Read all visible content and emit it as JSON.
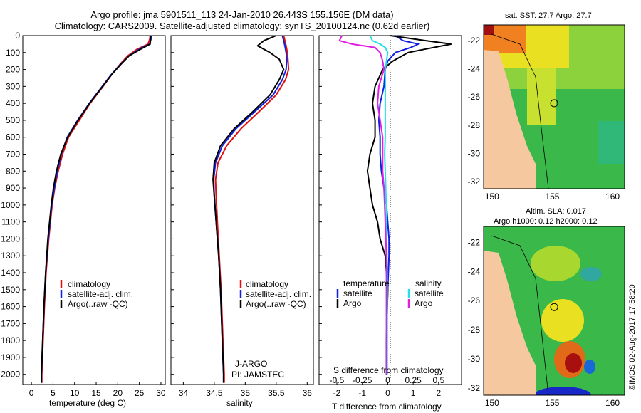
{
  "figure": {
    "title_line1": "Argo profile: jma 5901511_113 24-Jan-2010 26.443S 155.156E (DM data)",
    "title_line2": "Climatology: CARS2009. Satellite-adjusted climatology: synTS_20100124.nc (0.62d earlier)",
    "credit": "©IMOS 02-Aug-2017 17:58:20",
    "pi_line1": "J-ARGO",
    "pi_line2": "PI: JAMSTEC"
  },
  "colors": {
    "climatology": "#e01010",
    "satellite": "#1020e0",
    "argo": "#000000",
    "salinity_satellite": "#20e0e8",
    "salinity_argo": "#e020e0",
    "land": "#f5c8a0"
  },
  "chart_data": [
    {
      "type": "line",
      "panel": "temperature",
      "xlabel": "temperature (deg C)",
      "ylabel": "",
      "xlim": [
        -2,
        31
      ],
      "ylim": [
        2060,
        0
      ],
      "xticks": [
        "0",
        "5",
        "10",
        "15",
        "20",
        "25",
        "30"
      ],
      "yticks": [
        "0",
        "100",
        "200",
        "300",
        "400",
        "500",
        "600",
        "700",
        "800",
        "900",
        "1000",
        "1100",
        "1200",
        "1300",
        "1400",
        "1500",
        "1600",
        "1700",
        "1800",
        "1900",
        "2000"
      ],
      "legend": [
        "climatology",
        "satellite-adj. clim.",
        "Argo(..raw -QC)"
      ],
      "depth": [
        0,
        20,
        50,
        80,
        120,
        170,
        230,
        300,
        400,
        500,
        600,
        700,
        800,
        900,
        1000,
        1200,
        1400,
        1600,
        1800,
        2000,
        2050
      ],
      "series": [
        {
          "name": "climatology",
          "values": [
            27.5,
            27.4,
            27.0,
            24.5,
            22.3,
            20.5,
            18.6,
            16.6,
            13.6,
            11.1,
            8.6,
            7.2,
            6.2,
            5.4,
            4.8,
            4.0,
            3.4,
            3.0,
            2.7,
            2.4,
            2.4
          ]
        },
        {
          "name": "satellite-adj. clim.",
          "values": [
            27.8,
            27.7,
            27.4,
            25.0,
            22.6,
            20.6,
            18.5,
            16.4,
            13.4,
            10.7,
            8.3,
            6.9,
            6.0,
            5.3,
            4.7,
            3.9,
            3.3,
            2.9,
            2.6,
            2.3,
            2.3
          ]
        },
        {
          "name": "Argo(..raw -QC)",
          "values": [
            27.6,
            27.6,
            27.5,
            25.3,
            22.6,
            20.7,
            18.6,
            16.5,
            13.5,
            10.8,
            8.4,
            6.8,
            5.8,
            5.1,
            4.6,
            3.8,
            3.3,
            2.9,
            2.6,
            2.3,
            2.3
          ]
        }
      ]
    },
    {
      "type": "line",
      "panel": "salinity",
      "xlabel": "salinity",
      "ylabel": "",
      "xlim": [
        33.8,
        36.1
      ],
      "ylim": [
        2060,
        0
      ],
      "xticks": [
        "34",
        "34.5",
        "35",
        "35.5",
        "36"
      ],
      "legend": [
        "climatology",
        "satellite-adj. clim.",
        "Argo(..raw -QC)"
      ],
      "depth": [
        0,
        30,
        60,
        100,
        140,
        200,
        260,
        350,
        450,
        550,
        650,
        750,
        850,
        950,
        1100,
        1300,
        1500,
        1700,
        1900,
        2000,
        2050
      ],
      "series": [
        {
          "name": "climatology",
          "values": [
            35.62,
            35.64,
            35.66,
            35.68,
            35.69,
            35.7,
            35.65,
            35.5,
            35.22,
            34.93,
            34.7,
            34.56,
            34.52,
            34.53,
            34.55,
            34.58,
            34.61,
            34.63,
            34.65,
            34.66,
            34.66
          ]
        },
        {
          "name": "satellite-adj. clim.",
          "values": [
            35.6,
            35.62,
            35.64,
            35.66,
            35.67,
            35.66,
            35.6,
            35.45,
            35.15,
            34.85,
            34.63,
            34.52,
            34.49,
            34.5,
            34.53,
            34.57,
            34.6,
            34.62,
            34.64,
            34.65,
            34.65
          ]
        },
        {
          "name": "Argo(..raw -QC)",
          "values": [
            35.5,
            35.3,
            35.2,
            35.4,
            35.55,
            35.62,
            35.55,
            35.4,
            35.12,
            34.82,
            34.6,
            34.5,
            34.48,
            34.5,
            34.53,
            34.57,
            34.6,
            34.62,
            34.64,
            34.65,
            34.65
          ]
        }
      ]
    },
    {
      "type": "line",
      "panel": "difference",
      "xlabel": "T difference from climatology",
      "xlabel_top": "S difference from climatology",
      "ylabel": "",
      "xlim": [
        -2.7,
        2.9
      ],
      "ylim": [
        2060,
        0
      ],
      "xticks": [
        "-2",
        "-1",
        "0",
        "1",
        "2"
      ],
      "sticks": [
        "-0.5",
        "-0.25",
        "0",
        "0.25",
        "0.5"
      ],
      "s_tick_positions": [
        -2,
        -1,
        0,
        1,
        2
      ],
      "legend_title_t": "temperature",
      "legend_title_s": "salinity",
      "legend_t": [
        "satellite",
        "Argo"
      ],
      "legend_s": [
        "satellite",
        "Argo"
      ],
      "depth": [
        0,
        30,
        50,
        70,
        100,
        150,
        200,
        300,
        400,
        500,
        600,
        700,
        800,
        900,
        1000,
        1100,
        1200,
        1300,
        1500,
        1800,
        2000
      ],
      "series": [
        {
          "name": "temperature satellite",
          "values": [
            0.3,
            0.6,
            1.2,
            0.9,
            0.3,
            0.0,
            -0.1,
            -0.15,
            -0.3,
            -0.35,
            -0.3,
            -0.3,
            -0.25,
            -0.15,
            -0.05,
            0.0,
            0.05,
            0.05,
            0.0,
            -0.05,
            -0.05
          ]
        },
        {
          "name": "temperature Argo",
          "values": [
            0.1,
            1.5,
            2.5,
            1.8,
            0.8,
            0.2,
            -0.2,
            -0.5,
            -0.6,
            -0.5,
            -0.5,
            -0.7,
            -0.8,
            -0.7,
            -0.6,
            -0.4,
            -0.3,
            -0.1,
            0.0,
            -0.05,
            -0.05
          ]
        },
        {
          "name": "salinity satellite",
          "values": [
            -0.7,
            -0.6,
            -0.3,
            -0.1,
            0.0,
            -0.05,
            -0.1,
            -0.1,
            -0.1,
            -0.1,
            -0.1,
            -0.12,
            -0.1,
            -0.08,
            -0.06,
            -0.05,
            -0.04,
            -0.03,
            -0.02,
            -0.02,
            -0.02
          ]
        },
        {
          "name": "salinity Argo",
          "values": [
            -1.8,
            -1.9,
            -1.4,
            -0.5,
            -0.3,
            -0.2,
            -0.15,
            -0.35,
            -0.4,
            -0.3,
            -0.2,
            -0.2,
            -0.2,
            -0.15,
            -0.12,
            -0.1,
            -0.08,
            -0.05,
            -0.05,
            -0.05,
            -0.05
          ]
        }
      ]
    },
    {
      "type": "heatmap",
      "panel": "sst-map",
      "title": "sat. SST: 27.7 Argo: 27.7",
      "xticks": [
        "150",
        "155",
        "160"
      ],
      "yticks": [
        "-22",
        "-24",
        "-26",
        "-28",
        "-30",
        "-32"
      ],
      "xlim": [
        149.3,
        161
      ],
      "ylim": [
        -32.5,
        -20.9
      ],
      "marker": {
        "lon": 155.156,
        "lat": -26.443
      }
    },
    {
      "type": "heatmap",
      "panel": "sla-map",
      "title": "Altim. SLA: 0.017",
      "subtitle": "Argo h1000: 0.12 h2000: 0.12",
      "xticks": [
        "150",
        "155",
        "160"
      ],
      "yticks": [
        "-22",
        "-24",
        "-26",
        "-28",
        "-30",
        "-32"
      ],
      "xlim": [
        149.3,
        161
      ],
      "ylim": [
        -32.5,
        -20.9
      ],
      "marker": {
        "lon": 155.156,
        "lat": -26.443
      }
    }
  ]
}
